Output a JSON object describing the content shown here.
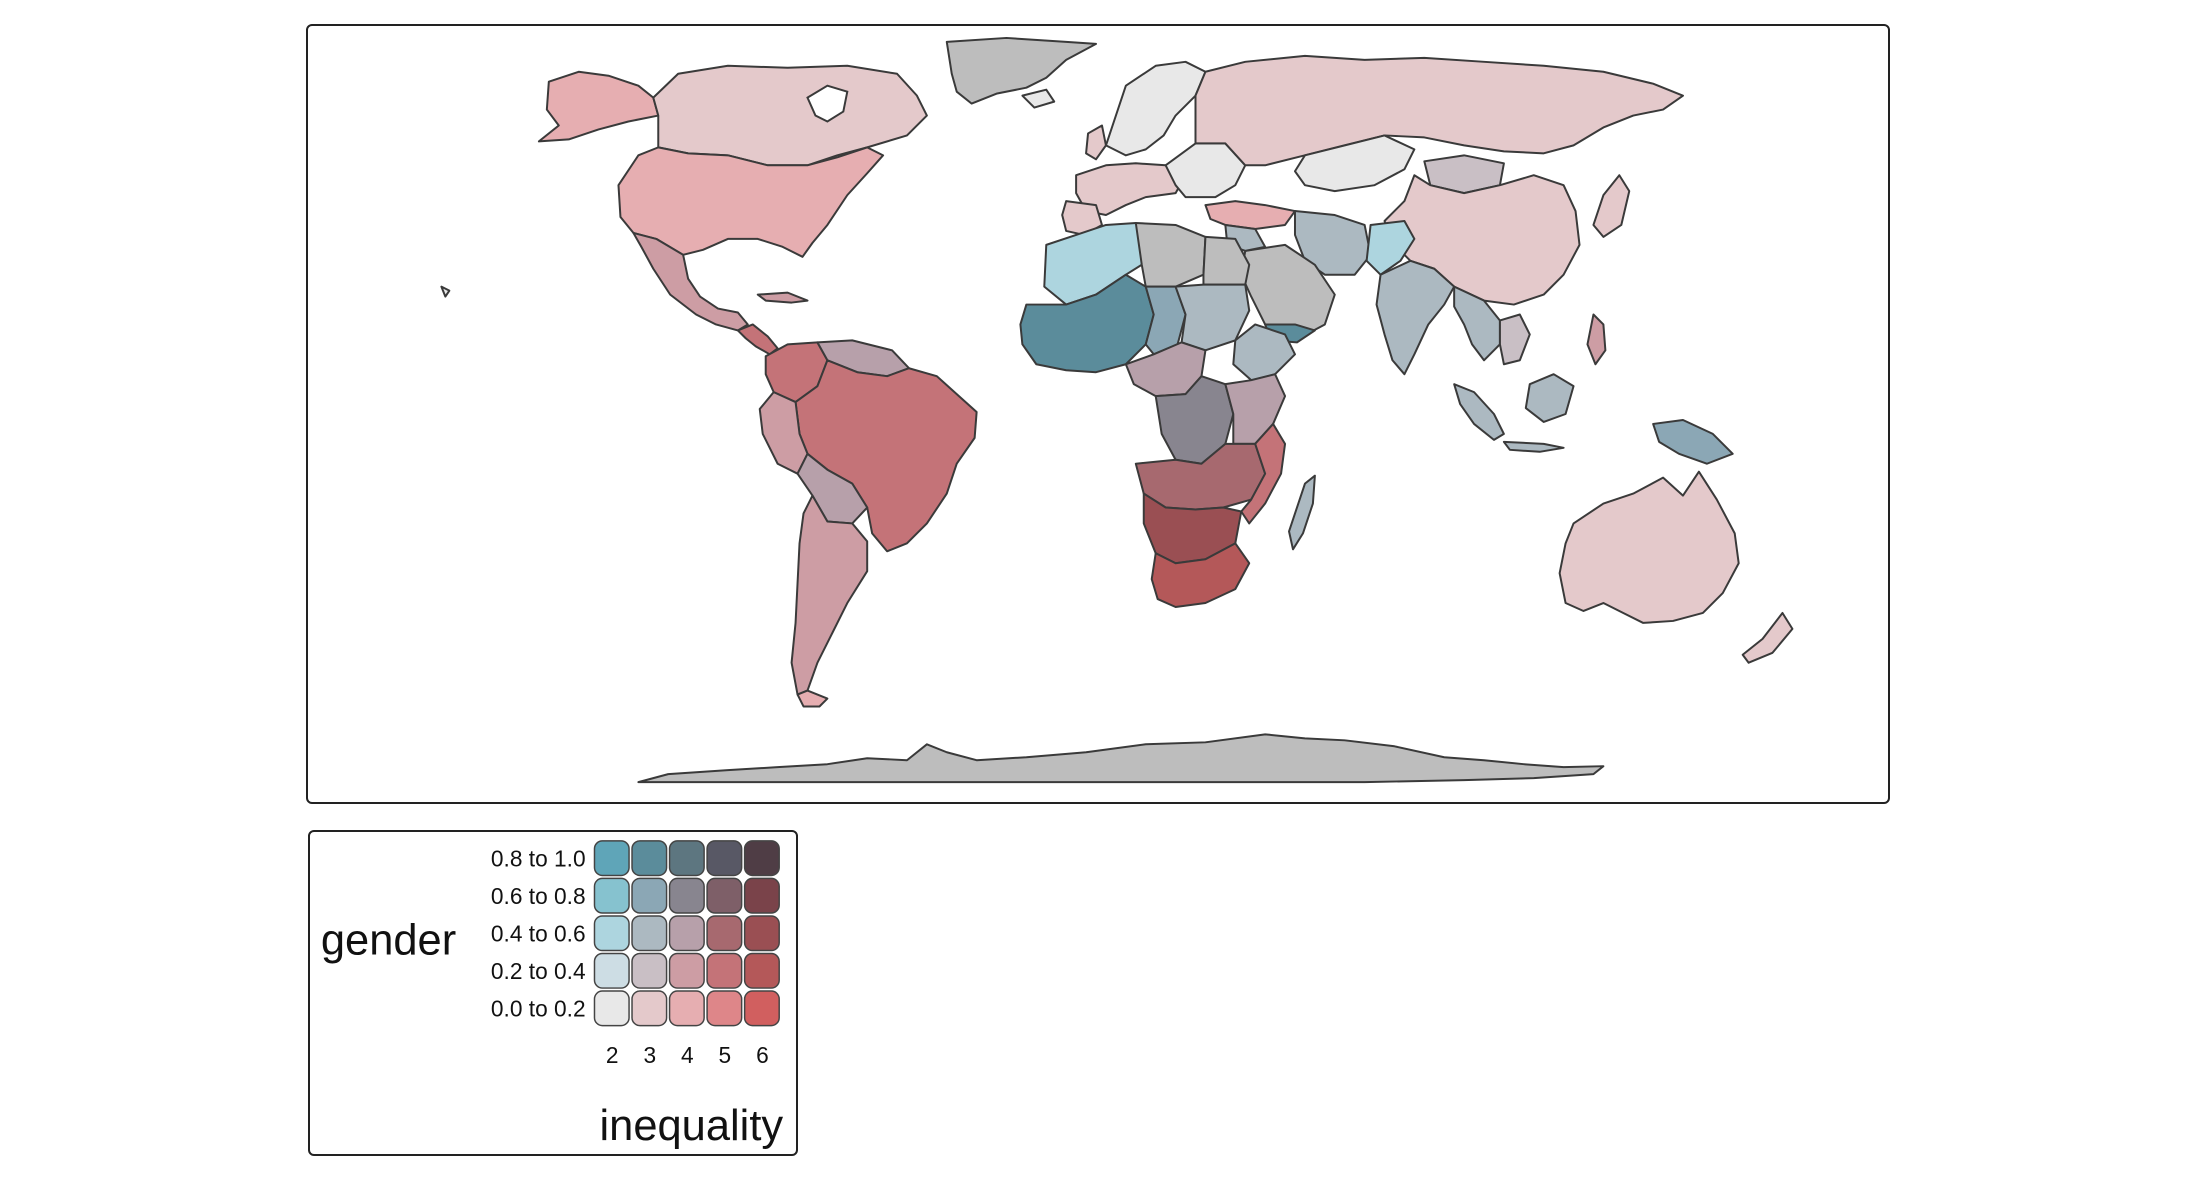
{
  "legend": {
    "y_title": "gender",
    "x_title": "inequality",
    "y_classes": [
      "0.0 to 0.2",
      "0.2 to 0.4",
      "0.4 to 0.6",
      "0.6 to 0.8",
      "0.8 to 1.0"
    ],
    "x_classes": [
      "2",
      "3",
      "4",
      "5",
      "6"
    ],
    "palette": [
      [
        "#e8e8e8",
        "#e4c9cb",
        "#e6aeb1",
        "#de8689",
        "#d15f5f"
      ],
      [
        "#cddde4",
        "#c9bfc5",
        "#cd9da4",
        "#c47378",
        "#b45859"
      ],
      [
        "#add5df",
        "#acb9c1",
        "#b7a0aa",
        "#a7696f",
        "#9a4f53"
      ],
      [
        "#86c2cf",
        "#8ba7b5",
        "#88858f",
        "#7e5f68",
        "#7a434a"
      ],
      [
        "#5fa5b8",
        "#5b8c9b",
        "#5d7680",
        "#585865",
        "#4f3d45"
      ]
    ],
    "no_data_color": "#bdbdbd"
  }
}
